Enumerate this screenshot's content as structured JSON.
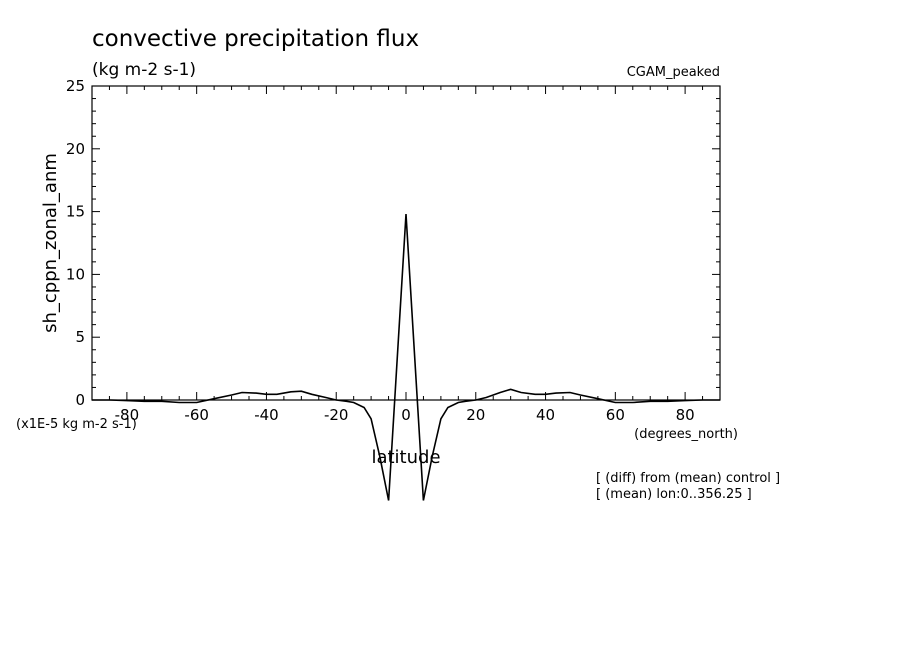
{
  "title": "convective precipitation flux",
  "units": "(kg m-2 s-1)",
  "experiment": "CGAM_peaked",
  "scale_note": "(x1E-5 kg m-2 s-1)",
  "notes": [
    "[ (diff) from (mean) control ]",
    "[ (mean) lon:0..356.25 ]"
  ],
  "chart_data": {
    "type": "line",
    "title": "convective precipitation flux",
    "xlabel": "latitude",
    "xunits": "(degrees_north)",
    "ylabel": "sh_cppn_zonal_anm",
    "xlim": [
      -90,
      90
    ],
    "ylim": [
      0,
      25
    ],
    "xticks": [
      -80,
      -60,
      -40,
      -20,
      0,
      20,
      40,
      60,
      80
    ],
    "yticks": [
      0,
      5,
      10,
      15,
      20,
      25
    ],
    "series": [
      {
        "x": [
          -90,
          -85,
          -80,
          -75,
          -70,
          -65,
          -60,
          -55,
          -50,
          -47,
          -43,
          -40,
          -37,
          -33,
          -30,
          -27,
          -23,
          -20,
          -17,
          -15,
          -12,
          -10,
          -7.5,
          -5,
          0,
          5,
          7.5,
          10,
          12,
          15,
          17,
          20,
          23,
          27,
          30,
          33,
          37,
          40,
          43,
          47,
          50,
          55,
          60,
          65,
          70,
          75,
          80,
          85,
          90
        ],
        "y": [
          0,
          0,
          -0.05,
          -0.1,
          -0.1,
          -0.2,
          -0.2,
          0.1,
          0.4,
          0.6,
          0.55,
          0.45,
          0.45,
          0.65,
          0.7,
          0.45,
          0.2,
          0,
          -0.1,
          -0.2,
          -0.6,
          -1.5,
          -4.5,
          -8,
          14.8,
          -8,
          -4.5,
          -1.5,
          -0.6,
          -0.2,
          -0.1,
          0,
          0.2,
          0.6,
          0.85,
          0.6,
          0.45,
          0.45,
          0.55,
          0.6,
          0.4,
          0.1,
          -0.2,
          -0.2,
          -0.1,
          -0.1,
          -0.05,
          0,
          0
        ]
      }
    ]
  }
}
